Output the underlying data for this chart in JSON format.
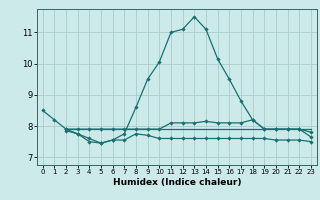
{
  "title": "",
  "xlabel": "Humidex (Indice chaleur)",
  "background_color": "#cceaea",
  "grid_color": "#aacccc",
  "line_color": "#1a7070",
  "xlim": [
    -0.5,
    23.5
  ],
  "ylim": [
    6.75,
    11.75
  ],
  "yticks": [
    7,
    8,
    9,
    10,
    11
  ],
  "xticks": [
    0,
    1,
    2,
    3,
    4,
    5,
    6,
    7,
    8,
    9,
    10,
    11,
    12,
    13,
    14,
    15,
    16,
    17,
    18,
    19,
    20,
    21,
    22,
    23
  ],
  "line1_x": [
    0,
    1,
    2,
    3,
    4,
    5,
    6,
    7,
    8,
    9,
    10,
    11,
    12,
    13,
    14,
    15,
    16,
    17,
    18,
    19,
    20,
    21,
    22,
    23
  ],
  "line1_y": [
    8.5,
    8.2,
    7.9,
    7.75,
    7.5,
    7.45,
    7.55,
    7.75,
    8.6,
    9.5,
    10.05,
    11.0,
    11.1,
    11.5,
    11.1,
    10.15,
    9.5,
    8.8,
    8.2,
    7.9,
    7.9,
    7.9,
    7.9,
    7.8
  ],
  "line2_x": [
    2,
    3,
    4,
    5,
    6,
    7,
    8,
    9,
    10,
    11,
    12,
    13,
    14,
    15,
    16,
    17,
    18,
    19,
    20,
    21,
    22,
    23
  ],
  "line2_y": [
    7.9,
    7.9,
    7.9,
    7.9,
    7.9,
    7.9,
    7.9,
    7.9,
    7.9,
    8.1,
    8.1,
    8.1,
    8.15,
    8.1,
    8.1,
    8.1,
    8.2,
    7.9,
    7.9,
    7.9,
    7.9,
    7.65
  ],
  "line3_x": [
    2,
    3,
    4,
    5,
    6,
    7,
    8,
    9,
    10,
    11,
    12,
    13,
    14,
    15,
    16,
    17,
    18,
    19,
    20,
    21,
    22,
    23
  ],
  "line3_y": [
    7.85,
    7.75,
    7.6,
    7.45,
    7.55,
    7.55,
    7.75,
    7.7,
    7.6,
    7.6,
    7.6,
    7.6,
    7.6,
    7.6,
    7.6,
    7.6,
    7.6,
    7.6,
    7.55,
    7.55,
    7.55,
    7.5
  ],
  "line4_x": [
    2,
    3,
    4,
    5,
    6,
    7,
    8,
    9,
    10,
    11,
    12,
    13,
    14,
    15,
    16,
    17,
    18,
    19,
    20,
    21,
    22,
    23
  ],
  "line4_y": [
    7.9,
    7.9,
    7.9,
    7.9,
    7.9,
    7.9,
    7.9,
    7.9,
    7.9,
    7.9,
    7.9,
    7.9,
    7.9,
    7.9,
    7.9,
    7.9,
    7.9,
    7.9,
    7.9,
    7.9,
    7.9,
    7.9
  ]
}
